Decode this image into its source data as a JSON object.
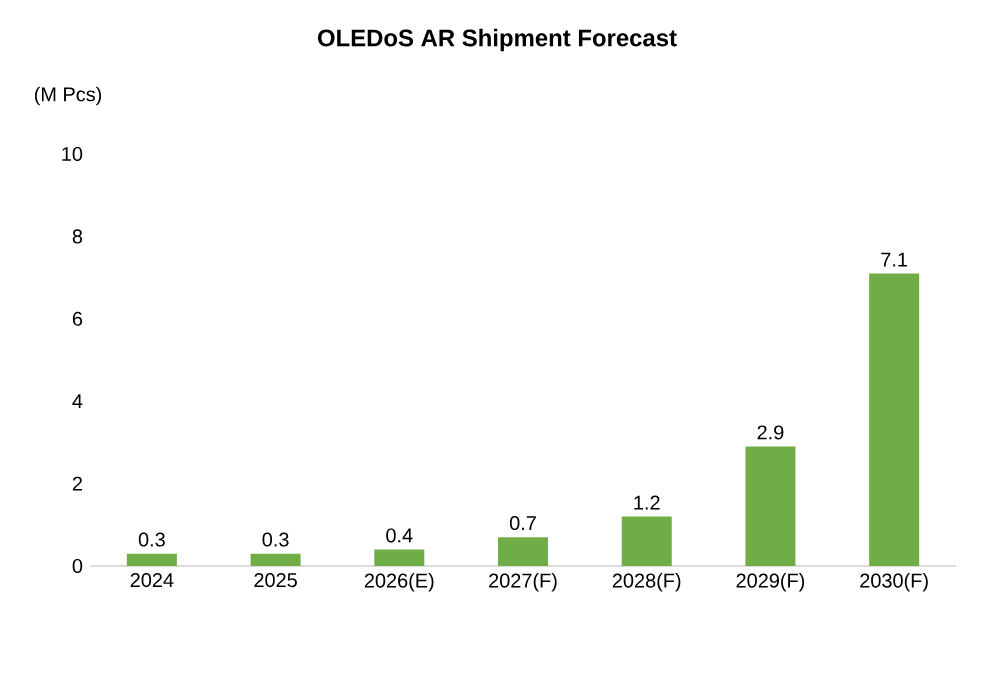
{
  "chart_data": {
    "type": "bar",
    "title": "OLEDoS AR Shipment Forecast",
    "ylabel": "(M Pcs)",
    "categories": [
      "2024",
      "2025",
      "2026(E)",
      "2027(F)",
      "2028(F)",
      "2029(F)",
      "2030(F)"
    ],
    "values": [
      0.3,
      0.3,
      0.4,
      0.7,
      1.2,
      2.9,
      7.1
    ],
    "color": "#70ad47",
    "ylim": [
      0,
      10
    ],
    "yticks": [
      0,
      2,
      4,
      6,
      8,
      10
    ],
    "grid": false,
    "data_labels": true
  }
}
